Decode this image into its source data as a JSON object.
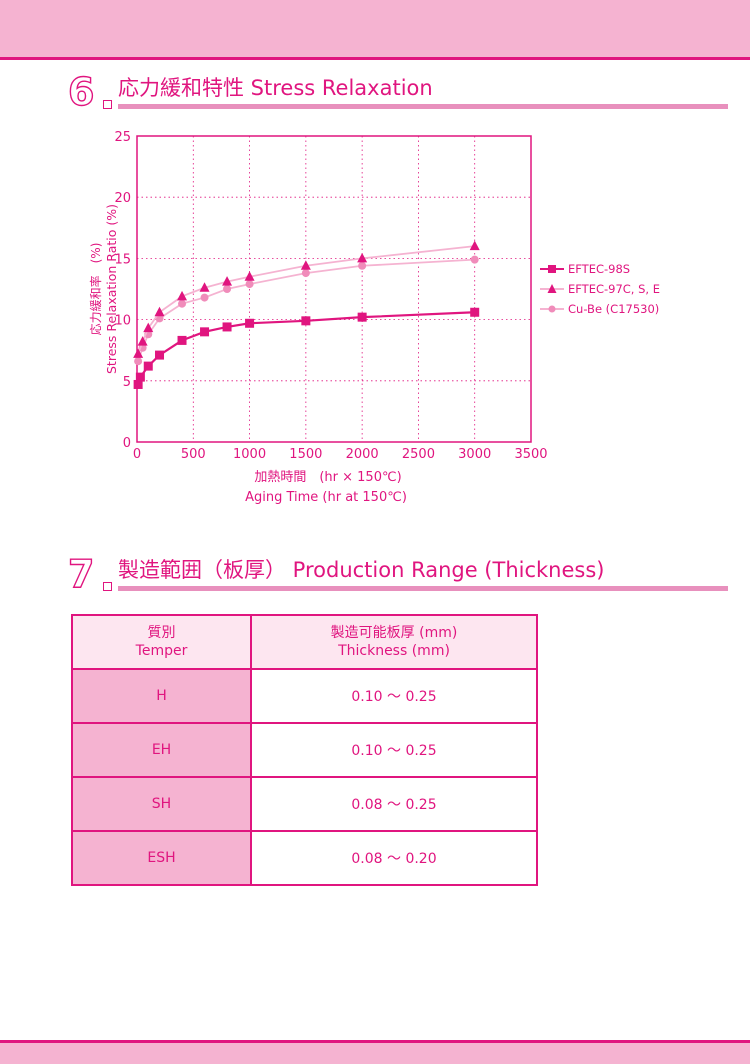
{
  "section6": {
    "number": "6",
    "title": "応力緩和特性  Stress Relaxation"
  },
  "section7": {
    "number": "7",
    "title": "製造範囲（板厚）  Production Range (Thickness)"
  },
  "chart_data": {
    "type": "line",
    "xlabel_jp": "加熱時間　(hr × 150℃)",
    "xlabel": "Aging Time (hr at 150℃)",
    "ylabel_jp": "応力緩和率　(%)",
    "ylabel": "Stress Relaxation Ratio (%)",
    "xlim": [
      0,
      3500
    ],
    "ylim": [
      0,
      25
    ],
    "xticks": [
      0,
      500,
      1000,
      1500,
      2000,
      2500,
      3000,
      3500
    ],
    "yticks": [
      0,
      5,
      10,
      15,
      20,
      25
    ],
    "grid": true,
    "legend_position": "right",
    "series": [
      {
        "name": "EFTEC-98S",
        "marker": "square",
        "color": "#e0157f",
        "x": [
          10,
          30,
          100,
          200,
          400,
          600,
          800,
          1000,
          1500,
          2000,
          3000
        ],
        "y": [
          4.7,
          5.3,
          6.2,
          7.1,
          8.3,
          9.0,
          9.4,
          9.7,
          9.9,
          10.2,
          10.6
        ]
      },
      {
        "name": "EFTEC-97C, S, E",
        "marker": "triangle",
        "color": "#e0157f",
        "line_color": "#f5b3d1",
        "x": [
          10,
          50,
          100,
          200,
          400,
          600,
          800,
          1000,
          1500,
          2000,
          3000
        ],
        "y": [
          7.2,
          8.2,
          9.3,
          10.6,
          11.9,
          12.6,
          13.1,
          13.5,
          14.4,
          15.0,
          16.0
        ]
      },
      {
        "name": "Cu-Be (C17530)",
        "marker": "circle",
        "color": "#f08cba",
        "line_color": "#f5b3d1",
        "x": [
          10,
          50,
          100,
          200,
          400,
          600,
          800,
          1000,
          1500,
          2000,
          3000
        ],
        "y": [
          6.6,
          7.7,
          8.8,
          10.1,
          11.3,
          11.8,
          12.5,
          12.9,
          13.8,
          14.4,
          14.9
        ]
      }
    ]
  },
  "table": {
    "header": {
      "temper_jp": "質別",
      "temper_en": "Temper",
      "thickness_jp": "製造可能板厚 (mm)",
      "thickness_en": "Thickness (mm)"
    },
    "rows": [
      {
        "temper": "H",
        "thickness": "0.10 ～ 0.25"
      },
      {
        "temper": "EH",
        "thickness": "0.10 ～ 0.25"
      },
      {
        "temper": "SH",
        "thickness": "0.08 ～ 0.25"
      },
      {
        "temper": "ESH",
        "thickness": "0.08 ～ 0.20"
      }
    ]
  }
}
